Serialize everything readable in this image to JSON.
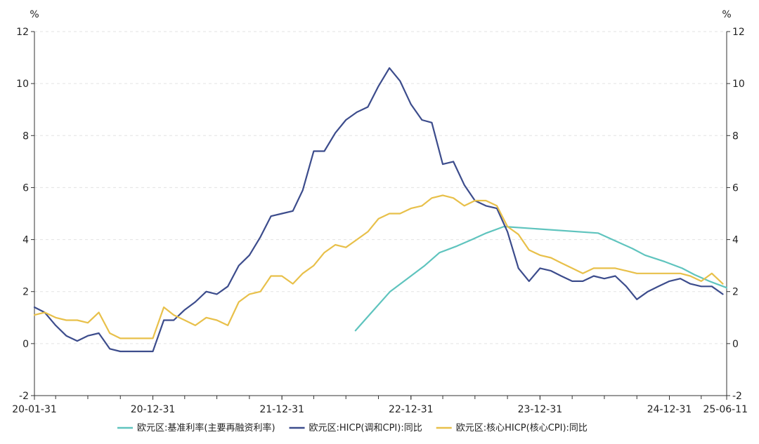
{
  "chart_data": {
    "type": "line",
    "y_unit_left": "%",
    "y_unit_right": "%",
    "ylim": [
      -2,
      12
    ],
    "y_ticks": [
      -2,
      0,
      2,
      4,
      6,
      8,
      10,
      12
    ],
    "grid": "horizontal-dashed",
    "x_tick_labels": [
      {
        "label": "20-01-31",
        "date": "2020-01-31"
      },
      {
        "label": "20-12-31",
        "date": "2020-12-31"
      },
      {
        "label": "21-12-31",
        "date": "2021-12-31"
      },
      {
        "label": "22-12-31",
        "date": "2022-12-31"
      },
      {
        "label": "23-12-31",
        "date": "2023-12-31"
      },
      {
        "label": "24-12-31",
        "date": "2024-12-31"
      },
      {
        "label": "25-06-11",
        "date": "2025-06-11"
      }
    ],
    "x_range": [
      "2020-01-31",
      "2025-06-11"
    ],
    "legend_position": "bottom-center",
    "series": [
      {
        "name": "欧元区:基准利率(主要再融资利率)",
        "color": "#5fc4be",
        "points": [
          [
            "2022-07-27",
            0.5
          ],
          [
            "2022-09-14",
            1.25
          ],
          [
            "2022-11-02",
            2.0
          ],
          [
            "2022-12-21",
            2.5
          ],
          [
            "2023-02-08",
            3.0
          ],
          [
            "2023-03-22",
            3.5
          ],
          [
            "2023-05-10",
            3.75
          ],
          [
            "2023-06-21",
            4.0
          ],
          [
            "2023-08-01",
            4.25
          ],
          [
            "2023-09-20",
            4.5
          ],
          [
            "2024-06-12",
            4.25
          ],
          [
            "2024-09-18",
            3.65
          ],
          [
            "2024-10-23",
            3.4
          ],
          [
            "2024-12-18",
            3.15
          ],
          [
            "2025-02-05",
            2.9
          ],
          [
            "2025-03-12",
            2.65
          ],
          [
            "2025-04-23",
            2.4
          ],
          [
            "2025-06-11",
            2.15
          ]
        ]
      },
      {
        "name": "欧元区:HICP(调和CPI):同比",
        "color": "#3c4c8c",
        "points": [
          [
            "2020-01-31",
            1.4
          ],
          [
            "2020-02-29",
            1.2
          ],
          [
            "2020-03-31",
            0.7
          ],
          [
            "2020-04-30",
            0.3
          ],
          [
            "2020-05-31",
            0.1
          ],
          [
            "2020-06-30",
            0.3
          ],
          [
            "2020-07-31",
            0.4
          ],
          [
            "2020-08-31",
            -0.2
          ],
          [
            "2020-09-30",
            -0.3
          ],
          [
            "2020-10-31",
            -0.3
          ],
          [
            "2020-11-30",
            -0.3
          ],
          [
            "2020-12-31",
            -0.3
          ],
          [
            "2021-01-31",
            0.9
          ],
          [
            "2021-02-28",
            0.9
          ],
          [
            "2021-03-31",
            1.3
          ],
          [
            "2021-04-30",
            1.6
          ],
          [
            "2021-05-31",
            2.0
          ],
          [
            "2021-06-30",
            1.9
          ],
          [
            "2021-07-31",
            2.2
          ],
          [
            "2021-08-31",
            3.0
          ],
          [
            "2021-09-30",
            3.4
          ],
          [
            "2021-10-31",
            4.1
          ],
          [
            "2021-11-30",
            4.9
          ],
          [
            "2021-12-31",
            5.0
          ],
          [
            "2022-01-31",
            5.1
          ],
          [
            "2022-02-28",
            5.9
          ],
          [
            "2022-03-31",
            7.4
          ],
          [
            "2022-04-30",
            7.4
          ],
          [
            "2022-05-31",
            8.1
          ],
          [
            "2022-06-30",
            8.6
          ],
          [
            "2022-07-31",
            8.9
          ],
          [
            "2022-08-31",
            9.1
          ],
          [
            "2022-09-30",
            9.9
          ],
          [
            "2022-10-31",
            10.6
          ],
          [
            "2022-11-30",
            10.1
          ],
          [
            "2022-12-31",
            9.2
          ],
          [
            "2023-01-31",
            8.6
          ],
          [
            "2023-02-28",
            8.5
          ],
          [
            "2023-03-31",
            6.9
          ],
          [
            "2023-04-30",
            7.0
          ],
          [
            "2023-05-31",
            6.1
          ],
          [
            "2023-06-30",
            5.5
          ],
          [
            "2023-07-31",
            5.3
          ],
          [
            "2023-08-31",
            5.2
          ],
          [
            "2023-09-30",
            4.3
          ],
          [
            "2023-10-31",
            2.9
          ],
          [
            "2023-11-30",
            2.4
          ],
          [
            "2023-12-31",
            2.9
          ],
          [
            "2024-01-31",
            2.8
          ],
          [
            "2024-02-29",
            2.6
          ],
          [
            "2024-03-31",
            2.4
          ],
          [
            "2024-04-30",
            2.4
          ],
          [
            "2024-05-31",
            2.6
          ],
          [
            "2024-06-30",
            2.5
          ],
          [
            "2024-07-31",
            2.6
          ],
          [
            "2024-08-31",
            2.2
          ],
          [
            "2024-09-30",
            1.7
          ],
          [
            "2024-10-31",
            2.0
          ],
          [
            "2024-11-30",
            2.2
          ],
          [
            "2024-12-31",
            2.4
          ],
          [
            "2025-01-31",
            2.5
          ],
          [
            "2025-02-28",
            2.3
          ],
          [
            "2025-03-31",
            2.2
          ],
          [
            "2025-04-30",
            2.2
          ],
          [
            "2025-05-31",
            1.9
          ]
        ]
      },
      {
        "name": "欧元区:核心HICP(核心CPI):同比",
        "color": "#e8c04a",
        "points": [
          [
            "2020-01-31",
            1.1
          ],
          [
            "2020-02-29",
            1.2
          ],
          [
            "2020-03-31",
            1.0
          ],
          [
            "2020-04-30",
            0.9
          ],
          [
            "2020-05-31",
            0.9
          ],
          [
            "2020-06-30",
            0.8
          ],
          [
            "2020-07-31",
            1.2
          ],
          [
            "2020-08-31",
            0.4
          ],
          [
            "2020-09-30",
            0.2
          ],
          [
            "2020-10-31",
            0.2
          ],
          [
            "2020-11-30",
            0.2
          ],
          [
            "2020-12-31",
            0.2
          ],
          [
            "2021-01-31",
            1.4
          ],
          [
            "2021-02-28",
            1.1
          ],
          [
            "2021-03-31",
            0.9
          ],
          [
            "2021-04-30",
            0.7
          ],
          [
            "2021-05-31",
            1.0
          ],
          [
            "2021-06-30",
            0.9
          ],
          [
            "2021-07-31",
            0.7
          ],
          [
            "2021-08-31",
            1.6
          ],
          [
            "2021-09-30",
            1.9
          ],
          [
            "2021-10-31",
            2.0
          ],
          [
            "2021-11-30",
            2.6
          ],
          [
            "2021-12-31",
            2.6
          ],
          [
            "2022-01-31",
            2.3
          ],
          [
            "2022-02-28",
            2.7
          ],
          [
            "2022-03-31",
            3.0
          ],
          [
            "2022-04-30",
            3.5
          ],
          [
            "2022-05-31",
            3.8
          ],
          [
            "2022-06-30",
            3.7
          ],
          [
            "2022-07-31",
            4.0
          ],
          [
            "2022-08-31",
            4.3
          ],
          [
            "2022-09-30",
            4.8
          ],
          [
            "2022-10-31",
            5.0
          ],
          [
            "2022-11-30",
            5.0
          ],
          [
            "2022-12-31",
            5.2
          ],
          [
            "2023-01-31",
            5.3
          ],
          [
            "2023-02-28",
            5.6
          ],
          [
            "2023-03-31",
            5.7
          ],
          [
            "2023-04-30",
            5.6
          ],
          [
            "2023-05-31",
            5.3
          ],
          [
            "2023-06-30",
            5.5
          ],
          [
            "2023-07-31",
            5.5
          ],
          [
            "2023-08-31",
            5.3
          ],
          [
            "2023-09-30",
            4.5
          ],
          [
            "2023-10-31",
            4.2
          ],
          [
            "2023-11-30",
            3.6
          ],
          [
            "2023-12-31",
            3.4
          ],
          [
            "2024-01-31",
            3.3
          ],
          [
            "2024-02-29",
            3.1
          ],
          [
            "2024-03-31",
            2.9
          ],
          [
            "2024-04-30",
            2.7
          ],
          [
            "2024-05-31",
            2.9
          ],
          [
            "2024-06-30",
            2.9
          ],
          [
            "2024-07-31",
            2.9
          ],
          [
            "2024-08-31",
            2.8
          ],
          [
            "2024-09-30",
            2.7
          ],
          [
            "2024-10-31",
            2.7
          ],
          [
            "2024-11-30",
            2.7
          ],
          [
            "2024-12-31",
            2.7
          ],
          [
            "2025-01-31",
            2.7
          ],
          [
            "2025-02-28",
            2.6
          ],
          [
            "2025-03-31",
            2.4
          ],
          [
            "2025-04-30",
            2.7
          ],
          [
            "2025-05-31",
            2.3
          ]
        ]
      }
    ]
  }
}
